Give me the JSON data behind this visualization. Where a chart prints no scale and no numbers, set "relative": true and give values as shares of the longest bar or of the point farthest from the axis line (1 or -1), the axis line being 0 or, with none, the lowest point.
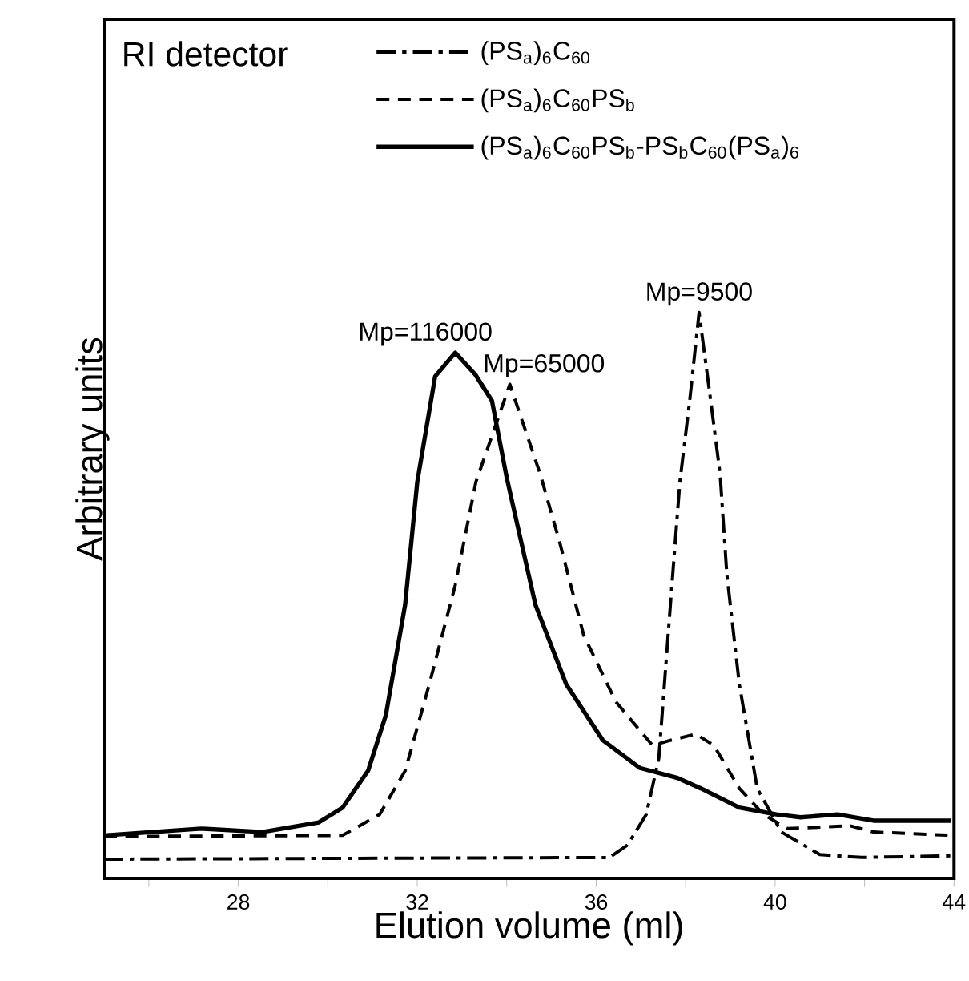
{
  "chart_data": {
    "type": "line",
    "relative": true,
    "xlabel": "Elution volume (ml)",
    "ylabel": "Arbitrary units",
    "legend_title": "RI detector",
    "legend": "top",
    "grid": false,
    "marker": "none",
    "xlim": [
      25,
      44
    ],
    "xticks": [
      {
        "value": 26,
        "label": null
      },
      28,
      {
        "value": 30,
        "label": null
      },
      32,
      {
        "value": 34,
        "label": null
      },
      36,
      {
        "value": 38,
        "label": null
      },
      40,
      {
        "value": 42,
        "label": null
      },
      44
    ],
    "annotations": [
      {
        "text": "Mp=116000",
        "x": 32.85,
        "y": 0.929
      },
      {
        "text": "Mp=65000",
        "x": 34.07,
        "y": 0.873
      },
      {
        "text": "Mp=9500",
        "x": 38.3,
        "y": 1.0
      }
    ],
    "series": [
      {
        "name": "(PS$_{a}$)$_{6}$C$_{60}$",
        "color": "#000000",
        "line_style": "dashdot",
        "x": [
          25.0,
          36.3,
          36.7,
          37.12,
          37.4,
          37.66,
          37.87,
          38.09,
          38.3,
          38.56,
          38.77,
          38.92,
          39.2,
          39.6,
          40.14,
          41.0,
          41.93,
          43.94
        ],
        "values": [
          0.034,
          0.037,
          0.059,
          0.113,
          0.212,
          0.484,
          0.7,
          0.844,
          1.0,
          0.844,
          0.714,
          0.538,
          0.343,
          0.159,
          0.082,
          0.042,
          0.037,
          0.04
        ]
      },
      {
        "name": "(PS$_{a}$)$_{6}$C$_{60}$PS$_{b}$",
        "color": "#000000",
        "line_style": "dashed",
        "x": [
          25.0,
          30.33,
          31.16,
          31.73,
          32.27,
          32.85,
          33.31,
          34.07,
          34.75,
          35.18,
          35.72,
          36.44,
          37.26,
          37.66,
          38.23,
          38.63,
          39.2,
          39.74,
          40.28,
          41.68,
          42.2,
          43.94
        ],
        "values": [
          0.074,
          0.076,
          0.113,
          0.19,
          0.343,
          0.518,
          0.7,
          0.873,
          0.714,
          0.595,
          0.43,
          0.312,
          0.235,
          0.244,
          0.255,
          0.235,
          0.159,
          0.113,
          0.088,
          0.093,
          0.082,
          0.076
        ]
      },
      {
        "name": "(PS$_{a}$)$_{6}$C$_{60}$PS$_{b}$-PS$_{b}$C$_{60}$(PS$_{a}$)$_{6}$",
        "color": "#000000",
        "line_style": "solid",
        "x": [
          25.0,
          27.17,
          28.54,
          29.8,
          30.33,
          30.9,
          31.3,
          31.73,
          32.0,
          32.4,
          32.85,
          33.3,
          33.67,
          34.0,
          34.64,
          35.33,
          36.15,
          36.98,
          37.8,
          38.34,
          39.2,
          40.03,
          40.57,
          41.4,
          42.2,
          43.94
        ],
        "values": [
          0.076,
          0.088,
          0.082,
          0.099,
          0.125,
          0.19,
          0.289,
          0.484,
          0.7,
          0.887,
          0.929,
          0.89,
          0.844,
          0.708,
          0.484,
          0.343,
          0.244,
          0.195,
          0.178,
          0.159,
          0.125,
          0.113,
          0.108,
          0.113,
          0.102,
          0.102
        ]
      }
    ]
  }
}
